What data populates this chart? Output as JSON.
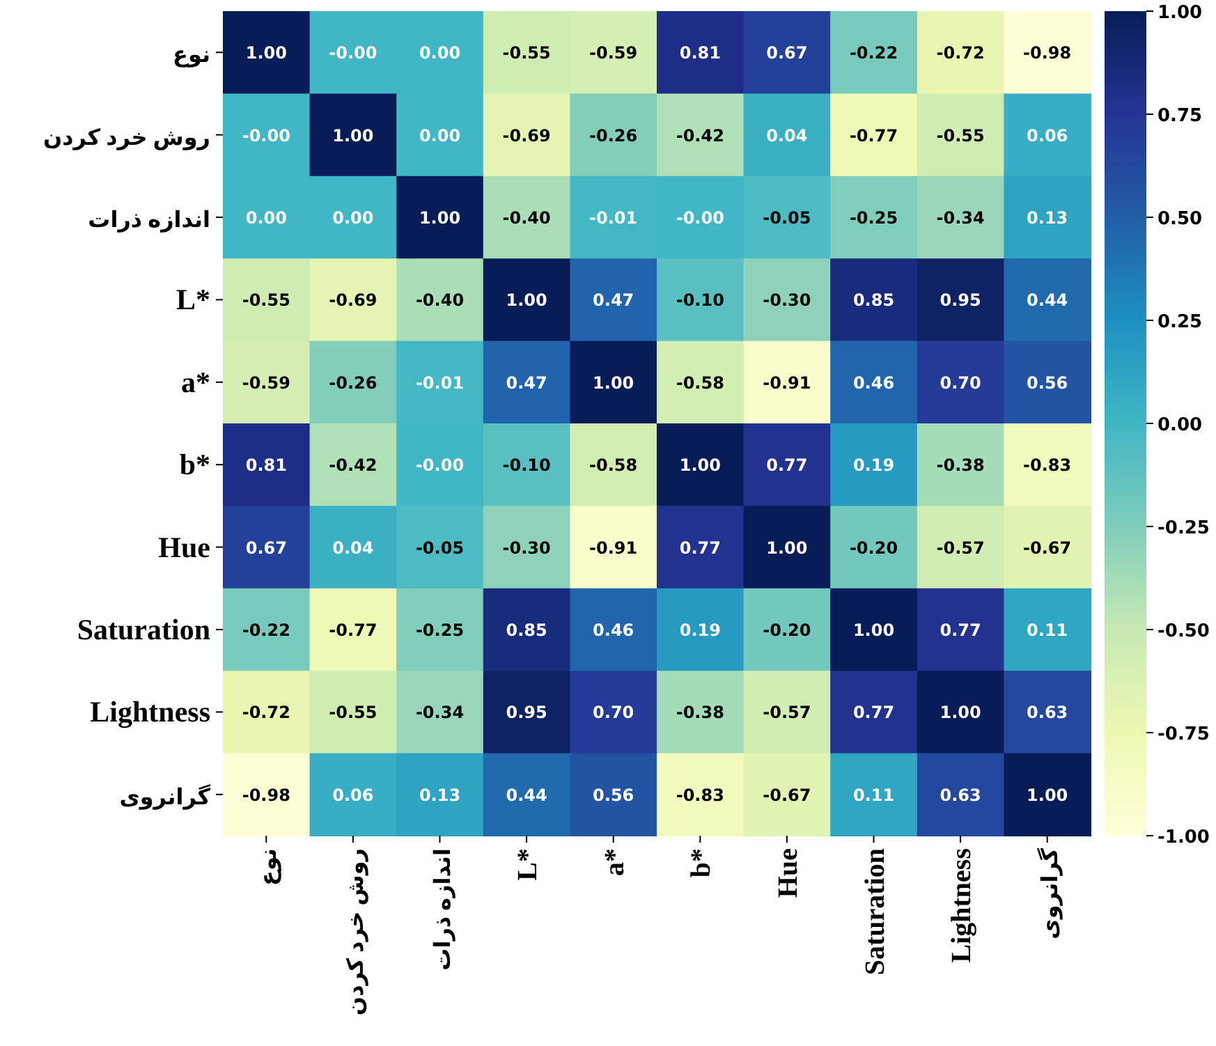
{
  "chart_data": {
    "type": "heatmap",
    "categories": [
      "نوع",
      "روش خرد کردن",
      "اندازه ذرات",
      "L*",
      "a*",
      "b*",
      "Hue",
      "Saturation",
      "Lightness",
      "گرانروی"
    ],
    "y_categories": [
      "نوع",
      "روش خرد کردن",
      "اندازه ذرات",
      "L*",
      "a*",
      "b*",
      "Hue",
      "Saturation",
      "Lightness",
      "گرانروی"
    ],
    "cells": [
      [
        1.0,
        -0.0,
        0.0,
        -0.55,
        -0.59,
        0.81,
        0.67,
        -0.22,
        -0.72,
        -0.98
      ],
      [
        -0.0,
        1.0,
        0.0,
        -0.69,
        -0.26,
        -0.42,
        0.04,
        -0.77,
        -0.55,
        0.06
      ],
      [
        0.0,
        0.0,
        1.0,
        -0.4,
        -0.01,
        -0.0,
        -0.05,
        -0.25,
        -0.34,
        0.13
      ],
      [
        -0.55,
        -0.69,
        -0.4,
        1.0,
        0.47,
        -0.1,
        -0.3,
        0.85,
        0.95,
        0.44
      ],
      [
        -0.59,
        -0.26,
        -0.01,
        0.47,
        1.0,
        -0.58,
        -0.91,
        0.46,
        0.7,
        0.56
      ],
      [
        0.81,
        -0.42,
        -0.0,
        -0.1,
        -0.58,
        1.0,
        0.77,
        0.19,
        -0.38,
        -0.83
      ],
      [
        0.67,
        0.04,
        -0.05,
        -0.3,
        -0.91,
        0.77,
        1.0,
        -0.2,
        -0.57,
        -0.67
      ],
      [
        -0.22,
        -0.77,
        -0.25,
        0.85,
        0.46,
        0.19,
        -0.2,
        1.0,
        0.77,
        0.11
      ],
      [
        -0.72,
        -0.55,
        -0.34,
        0.95,
        0.7,
        -0.38,
        -0.57,
        0.77,
        1.0,
        0.63
      ],
      [
        -0.98,
        0.06,
        0.13,
        0.44,
        0.56,
        -0.83,
        -0.67,
        0.11,
        0.63,
        1.0
      ]
    ],
    "cell_labels": [
      [
        "1.00",
        "-0.00",
        "0.00",
        "-0.55",
        "-0.59",
        "0.81",
        "0.67",
        "-0.22",
        "-0.72",
        "-0.98"
      ],
      [
        "-0.00",
        "1.00",
        "0.00",
        "-0.69",
        "-0.26",
        "-0.42",
        "0.04",
        "-0.77",
        "-0.55",
        "0.06"
      ],
      [
        "0.00",
        "0.00",
        "1.00",
        "-0.40",
        "-0.01",
        "-0.00",
        "-0.05",
        "-0.25",
        "-0.34",
        "0.13"
      ],
      [
        "-0.55",
        "-0.69",
        "-0.40",
        "1.00",
        "0.47",
        "-0.10",
        "-0.30",
        "0.85",
        "0.95",
        "0.44"
      ],
      [
        "-0.59",
        "-0.26",
        "-0.01",
        "0.47",
        "1.00",
        "-0.58",
        "-0.91",
        "0.46",
        "0.70",
        "0.56"
      ],
      [
        "0.81",
        "-0.42",
        "-0.00",
        "-0.10",
        "-0.58",
        "1.00",
        "0.77",
        "0.19",
        "-0.38",
        "-0.83"
      ],
      [
        "0.67",
        "0.04",
        "-0.05",
        "-0.30",
        "-0.91",
        "0.77",
        "1.00",
        "-0.20",
        "-0.57",
        "-0.67"
      ],
      [
        "-0.22",
        "-0.77",
        "-0.25",
        "0.85",
        "0.46",
        "0.19",
        "-0.20",
        "1.00",
        "0.77",
        "0.11"
      ],
      [
        "-0.72",
        "-0.55",
        "-0.34",
        "0.95",
        "0.70",
        "-0.38",
        "-0.57",
        "0.77",
        "1.00",
        "0.63"
      ],
      [
        "-0.98",
        "0.06",
        "0.13",
        "0.44",
        "0.56",
        "-0.83",
        "-0.67",
        "0.11",
        "0.63",
        "1.00"
      ]
    ],
    "clim": [
      -1,
      1
    ],
    "cticks": [
      {
        "value": -1,
        "label": "-1.00"
      },
      {
        "value": -0.75,
        "label": "-0.75"
      },
      {
        "value": -0.5,
        "label": "-0.50"
      },
      {
        "value": -0.25,
        "label": "-0.25"
      },
      {
        "value": 0,
        "label": "0.00"
      },
      {
        "value": 0.25,
        "label": "0.25"
      },
      {
        "value": 0.5,
        "label": "0.50"
      },
      {
        "value": 0.75,
        "label": "0.75"
      },
      {
        "value": 1,
        "label": "1.00"
      }
    ]
  }
}
